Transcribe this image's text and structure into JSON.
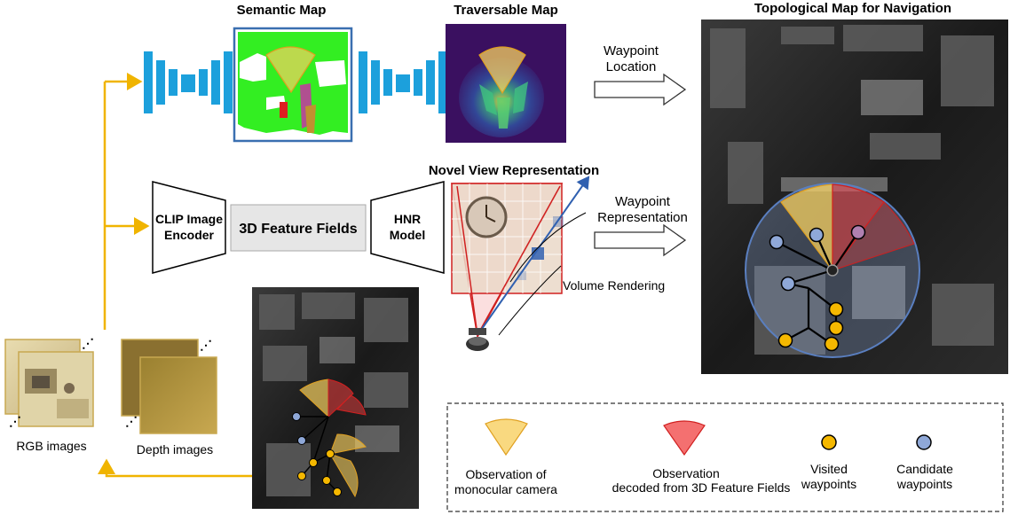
{
  "titles": {
    "semantic_map": "Semantic Map",
    "traversable_map": "Traversable Map",
    "topological_map": "Topological Map for Navigation",
    "novel_view": "Novel View Representation"
  },
  "blocks": {
    "clip_line1": "CLIP Image",
    "clip_line2": "Encoder",
    "feature_fields": "3D Feature Fields",
    "hnr_line1": "HNR",
    "hnr_line2": "Model"
  },
  "arrows": {
    "waypoint_location_line1": "Waypoint",
    "waypoint_location_line2": "Location",
    "waypoint_repr_line1": "Waypoint",
    "waypoint_repr_line2": "Representation"
  },
  "labels": {
    "volume_rendering": "Volume Rendering",
    "rgb_images": "RGB images",
    "depth_images": "Depth images"
  },
  "legend": {
    "monocular_line1": "Observation of",
    "monocular_line2": "monocular camera",
    "decoded_line1": "Observation",
    "decoded_line2": "decoded from 3D Feature Fields",
    "visited_line1": "Visited",
    "visited_line2": "waypoints",
    "candidate_line1": "Candidate",
    "candidate_line2": "waypoints"
  },
  "colors": {
    "flow_arrow": "#f0b400",
    "encoder_blue": "#1ca0dc",
    "semantic_green": "#33ee22",
    "observation_yellow": "#f7d060",
    "observation_red": "#f04040",
    "visited": "#f5b800",
    "candidate": "#8fa8d8",
    "radius_circle": "#5a7fc0"
  },
  "icons": {
    "encoder": "unet-encoder-decoder-icon",
    "robot": "robot-icon"
  }
}
